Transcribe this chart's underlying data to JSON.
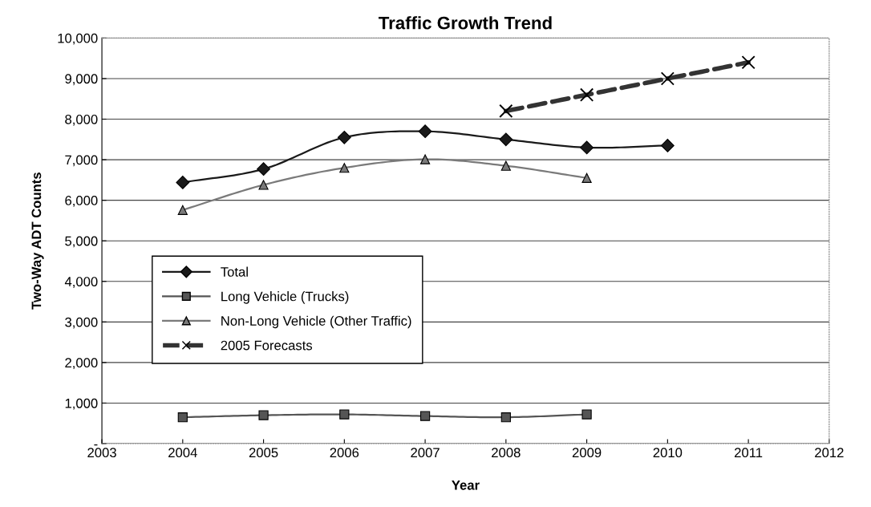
{
  "chart_data": {
    "type": "line",
    "title": "Traffic Growth Trend",
    "xlabel": "Year",
    "ylabel": "Two-Way ADT Counts",
    "xlim": [
      2003,
      2012
    ],
    "xticks": [
      2003,
      2004,
      2005,
      2006,
      2007,
      2008,
      2009,
      2010,
      2011,
      2012
    ],
    "ylim": [
      0,
      10000
    ],
    "yticks": [
      {
        "value": 0,
        "label": "-"
      },
      {
        "value": 1000,
        "label": "1,000"
      },
      {
        "value": 2000,
        "label": "2,000"
      },
      {
        "value": 3000,
        "label": "3,000"
      },
      {
        "value": 4000,
        "label": "4,000"
      },
      {
        "value": 5000,
        "label": "5,000"
      },
      {
        "value": 6000,
        "label": "6,000"
      },
      {
        "value": 7000,
        "label": "7,000"
      },
      {
        "value": 8000,
        "label": "8,000"
      },
      {
        "value": 9000,
        "label": "9,000"
      },
      {
        "value": 10000,
        "label": "10,000"
      }
    ],
    "grid": "y",
    "legend": "left",
    "series": [
      {
        "name": "Total",
        "color": "#1a1a1a",
        "marker": "diamond",
        "line_style": "solid",
        "x": [
          2004,
          2005,
          2006,
          2007,
          2008,
          2009,
          2010
        ],
        "values": [
          6440,
          6770,
          7550,
          7700,
          7500,
          7300,
          7350
        ]
      },
      {
        "name": "Long Vehicle (Trucks)",
        "color": "#555555",
        "marker": "square",
        "line_style": "solid",
        "x": [
          2004,
          2005,
          2006,
          2007,
          2008,
          2009
        ],
        "values": [
          650,
          700,
          720,
          680,
          650,
          720
        ]
      },
      {
        "name": "Non-Long Vehicle (Other Traffic)",
        "color": "#7a7a7a",
        "marker": "triangle",
        "line_style": "solid",
        "x": [
          2004,
          2005,
          2006,
          2007,
          2008,
          2009
        ],
        "values": [
          5760,
          6380,
          6800,
          7010,
          6850,
          6550
        ]
      },
      {
        "name": "2005 Forecasts",
        "color": "#333333",
        "marker": "cross",
        "line_style": "dashed",
        "x": [
          2008,
          2009,
          2010,
          2011
        ],
        "values": [
          8200,
          8600,
          9000,
          9400
        ]
      }
    ]
  }
}
